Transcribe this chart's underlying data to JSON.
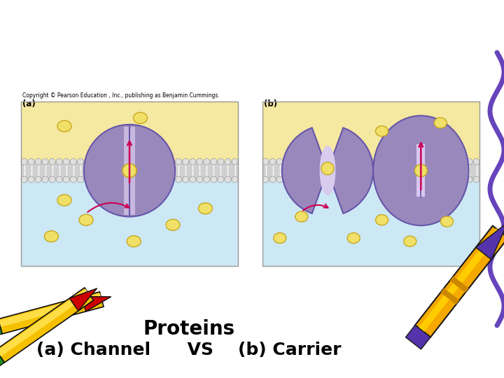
{
  "title_line1": "(a) Channel      VS    (b) Carrier",
  "title_line2": "Proteins",
  "title_fontsize": 18,
  "subtitle_fontsize": 20,
  "bg_color": "#ffffff",
  "panel_bg_top": "#d6eaf8",
  "panel_bg_bottom": "#f5e6a3",
  "membrane_color": "#c8c8c8",
  "protein_color": "#9988bb",
  "protein_dark": "#7766aa",
  "solute_color": "#f0e068",
  "solute_outline": "#c8a820",
  "arrow_color": "#cc0055",
  "label_a": "(a)",
  "label_b": "(b)",
  "copyright_text": "Copyright © Pearson Education , Inc., publishing as Benjamin Cummings.",
  "font_family": "Comic Sans MS"
}
